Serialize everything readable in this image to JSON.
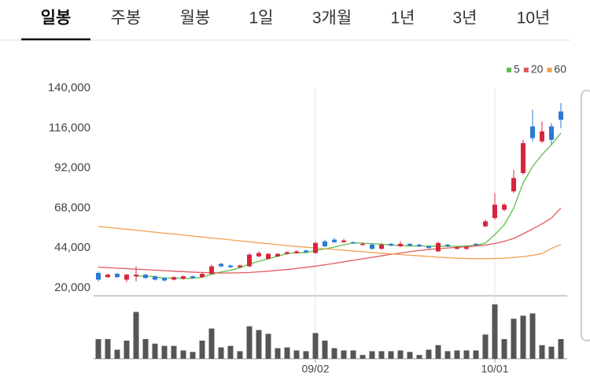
{
  "tabs": [
    "일봉",
    "주봉",
    "월봉",
    "1일",
    "3개월",
    "1년",
    "3년",
    "10년"
  ],
  "chart_data": {
    "type": "candlestick",
    "categories": [
      null,
      null,
      null,
      null,
      null,
      null,
      null,
      null,
      null,
      null,
      null,
      null,
      null,
      null,
      null,
      null,
      null,
      null,
      null,
      null,
      null,
      null,
      null,
      "09/02",
      null,
      null,
      null,
      null,
      null,
      null,
      null,
      null,
      null,
      null,
      null,
      null,
      null,
      null,
      null,
      null,
      null,
      null,
      "10/01",
      null,
      null,
      null,
      null,
      null,
      null,
      null
    ],
    "open": [
      29000,
      26500,
      28500,
      25000,
      27000,
      28000,
      27000,
      26000,
      25000,
      25500,
      27000,
      26500,
      28500,
      34500,
      33500,
      32500,
      33000,
      39000,
      37500,
      39000,
      40500,
      41000,
      42500,
      41000,
      48000,
      49000,
      47500,
      47500,
      46000,
      46000,
      43500,
      46500,
      45000,
      46500,
      46000,
      45000,
      42000,
      46000,
      43500,
      43500,
      46500,
      57000,
      62000,
      67000,
      78000,
      89000,
      117000,
      108000,
      117000,
      126000
    ],
    "high": [
      30000,
      28500,
      29000,
      28500,
      33000,
      28500,
      27500,
      26500,
      27000,
      27500,
      27500,
      29000,
      34000,
      35000,
      34000,
      34000,
      41000,
      42000,
      41000,
      41000,
      42000,
      42500,
      43000,
      48000,
      49000,
      50000,
      49500,
      48000,
      47500,
      47000,
      47000,
      47000,
      48000,
      47000,
      46500,
      45500,
      48000,
      46500,
      45000,
      45000,
      47000,
      61000,
      77000,
      71000,
      91000,
      109000,
      127000,
      120000,
      119000,
      131000
    ],
    "low": [
      24000,
      26000,
      26000,
      23500,
      24000,
      25500,
      24500,
      24000,
      24500,
      25000,
      25500,
      26000,
      28000,
      32500,
      32000,
      32000,
      32500,
      38500,
      37000,
      38500,
      40000,
      40500,
      41000,
      40500,
      44500,
      47000,
      47000,
      46500,
      45500,
      43000,
      43000,
      45000,
      44500,
      45000,
      44500,
      43500,
      41500,
      44500,
      43000,
      43000,
      45500,
      56500,
      61000,
      66000,
      77000,
      88000,
      108000,
      107000,
      106000,
      116000
    ],
    "close": [
      25000,
      28000,
      26500,
      28000,
      28000,
      26000,
      25000,
      24500,
      26500,
      27000,
      26000,
      28500,
      33000,
      33000,
      32500,
      33500,
      40000,
      41000,
      40500,
      40500,
      41500,
      42000,
      41500,
      47000,
      45000,
      47500,
      48500,
      47000,
      46500,
      43500,
      46000,
      45500,
      46500,
      45500,
      45000,
      44000,
      47000,
      45000,
      44500,
      44500,
      46000,
      60000,
      70000,
      70000,
      86000,
      107000,
      110000,
      114000,
      109000,
      121000
    ],
    "up_color": "#d7263d",
    "down_color": "#2a7ad5",
    "series": [
      {
        "name": "5",
        "color": "#5cbf4a",
        "values": [
          null,
          null,
          null,
          null,
          27000,
          27300,
          26700,
          25900,
          26000,
          25800,
          25800,
          26500,
          28200,
          29600,
          30600,
          32100,
          34400,
          36000,
          37500,
          39100,
          40700,
          41100,
          41200,
          42500,
          43400,
          44600,
          45900,
          47000,
          46900,
          46600,
          46300,
          45800,
          45500,
          45200,
          45300,
          45100,
          45200,
          45100,
          45000,
          45300,
          45500,
          47000,
          52000,
          58000,
          68000,
          83000,
          93000,
          100000,
          106000,
          113000
        ]
      },
      {
        "name": "20",
        "color": "#e05a5a",
        "values": [
          32500,
          32200,
          31900,
          31600,
          31300,
          31000,
          30700,
          30400,
          30100,
          29800,
          29500,
          29300,
          29100,
          29000,
          29000,
          29100,
          29300,
          29700,
          30100,
          30600,
          31100,
          31700,
          32400,
          33100,
          33900,
          34800,
          35700,
          36600,
          37500,
          38400,
          39300,
          40200,
          41000,
          41800,
          42500,
          43100,
          43600,
          44000,
          44400,
          44800,
          45200,
          45800,
          46700,
          48000,
          49800,
          52500,
          55500,
          58500,
          62000,
          68000
        ]
      },
      {
        "name": "60",
        "color": "#f0a050",
        "values": [
          57000,
          56400,
          55800,
          55300,
          54700,
          54100,
          53500,
          52900,
          52400,
          51800,
          51200,
          50600,
          50000,
          49500,
          48900,
          48300,
          47700,
          47100,
          46600,
          46000,
          45400,
          44900,
          44500,
          44000,
          43600,
          43100,
          42700,
          42200,
          41800,
          41300,
          40900,
          40500,
          40100,
          39700,
          39300,
          38900,
          38500,
          38200,
          37900,
          37700,
          37600,
          37600,
          37700,
          37900,
          38300,
          38800,
          39600,
          40700,
          43800,
          46000
        ]
      }
    ],
    "ylim": [
      15300,
      140000
    ],
    "yticks": [
      {
        "value": 20000,
        "label": "20,000"
      },
      {
        "value": 44000,
        "label": "44,000"
      },
      {
        "value": 68000,
        "label": "68,000"
      },
      {
        "value": 92000,
        "label": "92,000"
      },
      {
        "value": 116000,
        "label": "116,000"
      },
      {
        "value": 140000,
        "label": "140,000"
      }
    ],
    "legend": "top-right",
    "volume": {
      "color": "#555555",
      "ylim": [
        0,
        75
      ],
      "values": [
        26,
        26,
        12,
        24,
        62,
        26,
        20,
        17,
        17,
        11,
        9,
        24,
        40,
        15,
        17,
        10,
        43,
        38,
        33,
        14,
        15,
        11,
        10,
        34,
        24,
        14,
        11,
        11,
        5,
        10,
        10,
        10,
        11,
        9,
        5,
        12,
        18,
        10,
        11,
        11,
        11,
        32,
        72,
        26,
        53,
        57,
        60,
        18,
        16,
        26
      ]
    }
  }
}
